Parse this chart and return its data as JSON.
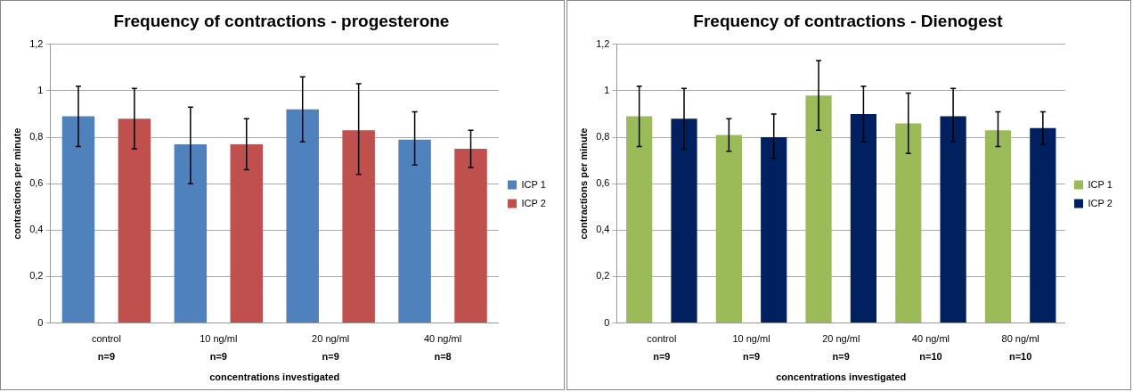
{
  "chart_data": [
    {
      "type": "bar",
      "title": "Frequency of contractions - progesterone",
      "xlabel": "concentrations investigated",
      "ylabel": "contractions per minute",
      "categories": [
        "control",
        "10 ng/ml",
        "20 ng/ml",
        "40 ng/ml"
      ],
      "series": [
        {
          "name": "ICP 1",
          "color": "#4f81bd",
          "values": [
            0.89,
            0.77,
            0.92,
            0.79
          ],
          "errors": [
            [
              0.76,
              1.02
            ],
            [
              0.6,
              0.93
            ],
            [
              0.78,
              1.06
            ],
            [
              0.68,
              0.91
            ]
          ]
        },
        {
          "name": "ICP 2",
          "color": "#c0504d",
          "values": [
            0.88,
            0.77,
            0.83,
            0.75
          ],
          "errors": [
            [
              0.75,
              1.01
            ],
            [
              0.66,
              0.88
            ],
            [
              0.64,
              1.03
            ],
            [
              0.67,
              0.83
            ]
          ]
        }
      ],
      "annotations": [
        "n=9",
        "n=9",
        "n=9",
        "n=8"
      ],
      "ylim": [
        0,
        1.2
      ],
      "yticks": [
        {
          "value": 0,
          "label": "0"
        },
        {
          "value": 0.2,
          "label": "0,2"
        },
        {
          "value": 0.4,
          "label": "0,4"
        },
        {
          "value": 0.6,
          "label": "0,6"
        },
        {
          "value": 0.8,
          "label": "0,8"
        },
        {
          "value": 1,
          "label": "1"
        },
        {
          "value": 1.2,
          "label": "1,2"
        }
      ],
      "grid": "y",
      "legend": "right"
    },
    {
      "type": "bar",
      "title": "Frequency of contractions - Dienogest",
      "xlabel": "concentrations investigated",
      "ylabel": "contractions per minute",
      "categories": [
        "control",
        "10 ng/ml",
        "20 ng/ml",
        "40 ng/ml",
        "80 ng/ml"
      ],
      "series": [
        {
          "name": "ICP 1",
          "color": "#9bbb59",
          "values": [
            0.89,
            0.81,
            0.98,
            0.86,
            0.83
          ],
          "errors": [
            [
              0.76,
              1.02
            ],
            [
              0.74,
              0.88
            ],
            [
              0.83,
              1.13
            ],
            [
              0.73,
              0.99
            ],
            [
              0.76,
              0.91
            ]
          ]
        },
        {
          "name": "ICP 2",
          "color": "#002060",
          "values": [
            0.88,
            0.8,
            0.9,
            0.89,
            0.84
          ],
          "errors": [
            [
              0.75,
              1.01
            ],
            [
              0.71,
              0.9
            ],
            [
              0.78,
              1.02
            ],
            [
              0.78,
              1.01
            ],
            [
              0.77,
              0.91
            ]
          ]
        }
      ],
      "annotations": [
        "n=9",
        "n=9",
        "n=9",
        "n=10",
        "n=10"
      ],
      "ylim": [
        0,
        1.2
      ],
      "yticks": [
        {
          "value": 0,
          "label": "0"
        },
        {
          "value": 0.2,
          "label": "0,2"
        },
        {
          "value": 0.4,
          "label": "0,4"
        },
        {
          "value": 0.6,
          "label": "0,6"
        },
        {
          "value": 0.8,
          "label": "0,8"
        },
        {
          "value": 1,
          "label": "1"
        },
        {
          "value": 1.2,
          "label": "1,2"
        }
      ],
      "grid": "y",
      "legend": "right"
    }
  ]
}
